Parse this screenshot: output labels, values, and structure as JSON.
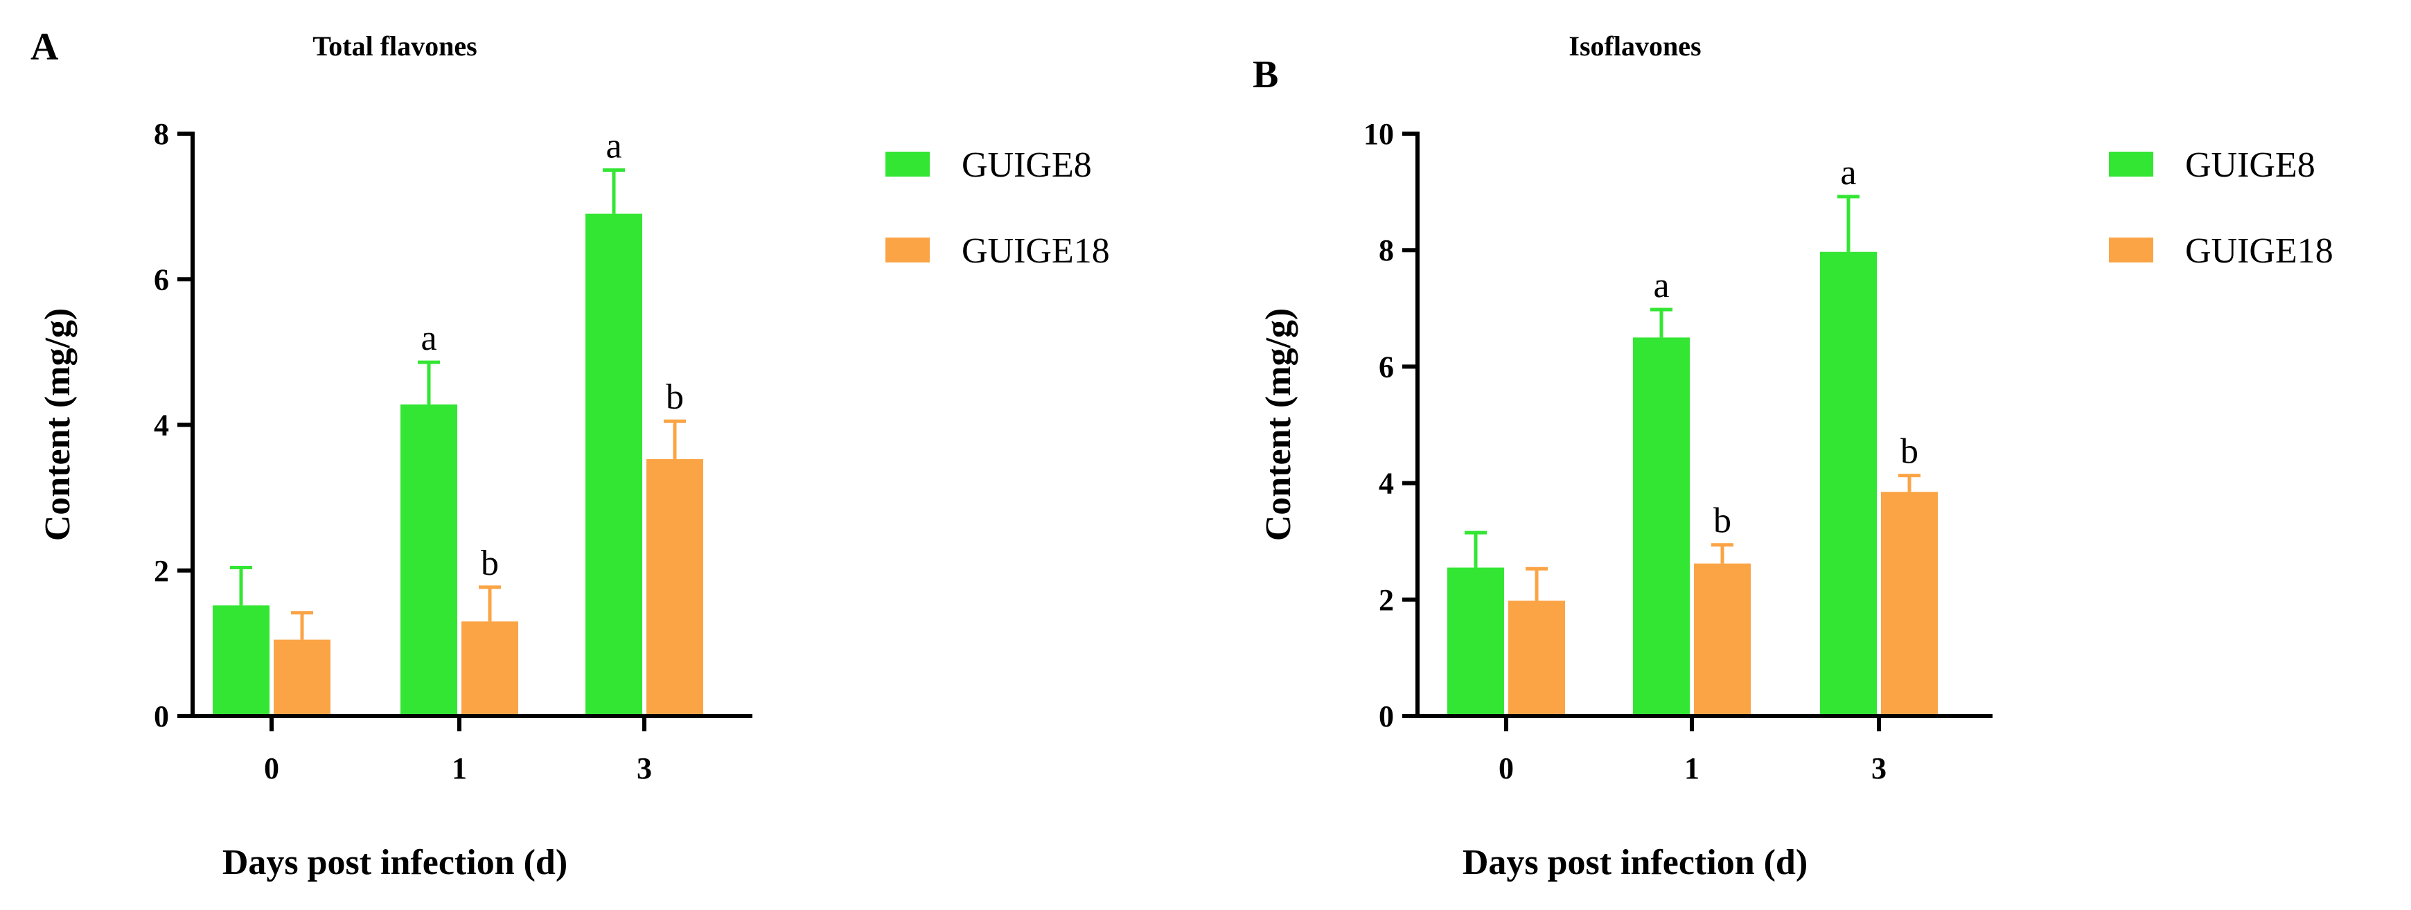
{
  "chart_data": [
    {
      "panel": "A",
      "type": "bar",
      "title": "Total flavones",
      "xlabel": "Days post infection (d)",
      "ylabel": "Content (mg/g)",
      "categories": [
        "0",
        "1",
        "3"
      ],
      "ylim": [
        0,
        8
      ],
      "yticks": [
        0,
        2,
        4,
        6,
        8
      ],
      "legend_position": "top-right",
      "series": [
        {
          "name": "GUIGE8",
          "color": "#33e633",
          "values": [
            1.52,
            4.28,
            6.9
          ],
          "errors": [
            0.52,
            0.58,
            0.6
          ],
          "labels": [
            "",
            "a",
            "a"
          ]
        },
        {
          "name": "GUIGE18",
          "color": "#fba446",
          "values": [
            1.05,
            1.3,
            3.53
          ],
          "errors": [
            0.37,
            0.47,
            0.52
          ],
          "labels": [
            "",
            "b",
            "b"
          ]
        }
      ]
    },
    {
      "panel": "B",
      "type": "bar",
      "title": "Isoflavones",
      "xlabel": "Days post infection (d)",
      "ylabel": "Content (mg/g)",
      "categories": [
        "0",
        "1",
        "3"
      ],
      "ylim": [
        0,
        10
      ],
      "yticks": [
        0,
        2,
        4,
        6,
        8,
        10
      ],
      "legend_position": "top-right",
      "series": [
        {
          "name": "GUIGE8",
          "color": "#33e633",
          "values": [
            2.55,
            6.5,
            7.97
          ],
          "errors": [
            0.6,
            0.48,
            0.95
          ],
          "labels": [
            "",
            "a",
            "a"
          ]
        },
        {
          "name": "GUIGE18",
          "color": "#fba446",
          "values": [
            1.98,
            2.62,
            3.85
          ],
          "errors": [
            0.55,
            0.32,
            0.28
          ],
          "labels": [
            "",
            "b",
            "b"
          ]
        }
      ]
    }
  ]
}
